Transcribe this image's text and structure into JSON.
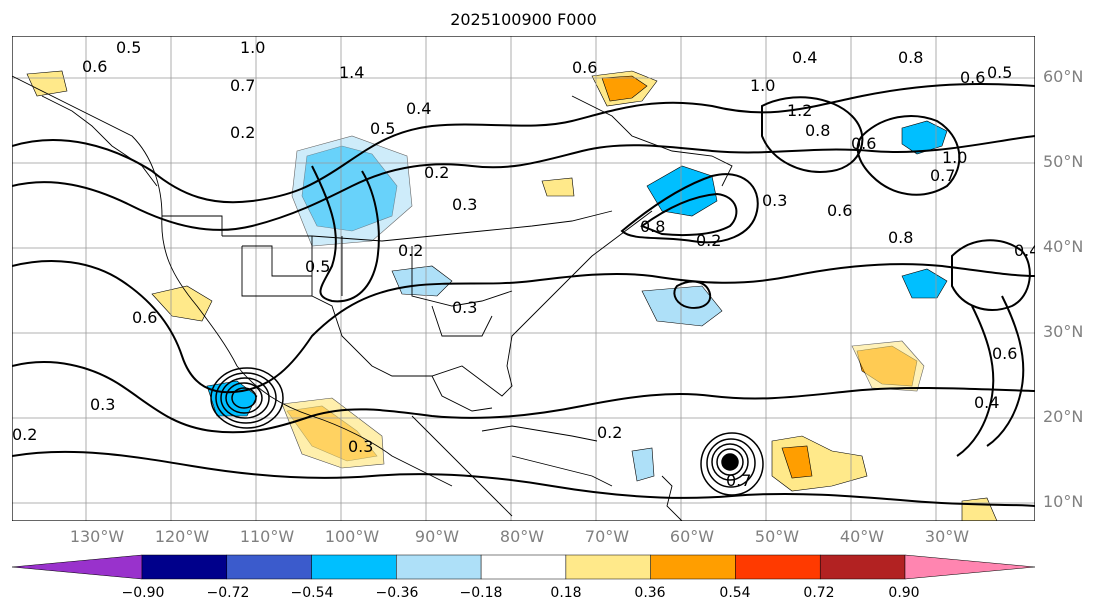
{
  "title": "2025100900 F000",
  "latitude_labels": [
    "60°N",
    "50°N",
    "40°N",
    "30°N",
    "20°N",
    "10°N"
  ],
  "longitude_labels": [
    "130°W",
    "120°W",
    "110°W",
    "100°W",
    "90°W",
    "80°W",
    "70°W",
    "60°W",
    "50°W",
    "40°W",
    "30°W"
  ],
  "contour_labels": [
    "0.5",
    "1.0",
    "0.6",
    "0.7",
    "0.2",
    "1.4",
    "0.4",
    "0.5",
    "0.2",
    "0.5",
    "0.2",
    "0.3",
    "0.6",
    "0.3",
    "0.2",
    "0.3",
    "0.3",
    "0.6",
    "0.4",
    "0.8",
    "0.5",
    "0.6",
    "1.0",
    "1.2",
    "0.8",
    "0.6",
    "1.0",
    "0.7",
    "0.6",
    "0.8",
    "0.4",
    "0.6",
    "0.4",
    "0.2",
    "0.3",
    "0.8",
    "0.7",
    "0.2"
  ],
  "colorbar": {
    "ticks": [
      "−0.90",
      "−0.72",
      "−0.54",
      "−0.36",
      "−0.18",
      "0.18",
      "0.36",
      "0.54",
      "0.72",
      "0.90"
    ],
    "colors": [
      "#9932cc",
      "#00008b",
      "#3b5bcc",
      "#00bfff",
      "#aee0f8",
      "#ffffff",
      "#ffe98a",
      "#ff9e00",
      "#ff3a00",
      "#b22222",
      "#ff85b0"
    ]
  }
}
